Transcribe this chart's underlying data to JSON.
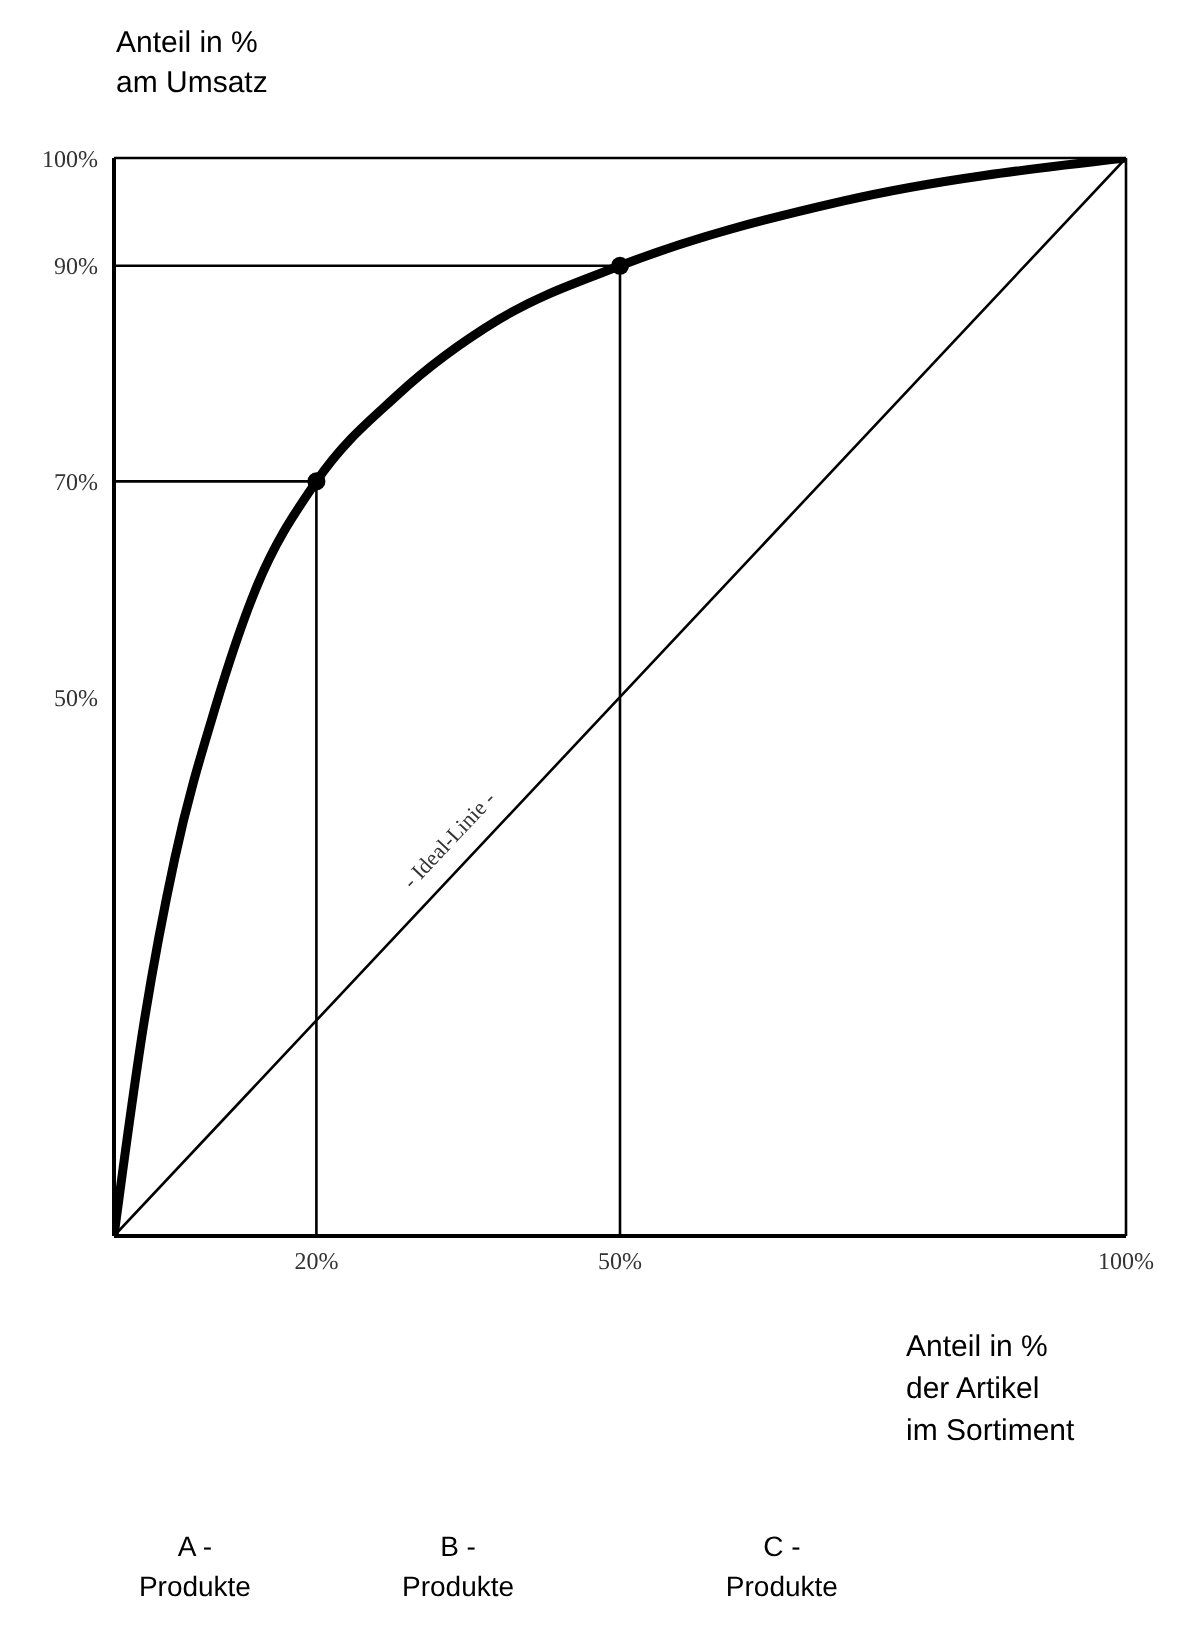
{
  "chart_data": {
    "type": "line",
    "xlabel": "Anteil in %\nder Artikel\nim Sortiment",
    "ylabel": "Anteil in %\nam Umsatz",
    "xlim": [
      0,
      100
    ],
    "ylim": [
      0,
      100
    ],
    "xticks": [
      {
        "value": 20,
        "label": "20%"
      },
      {
        "value": 50,
        "label": "50%"
      },
      {
        "value": 100,
        "label": "100%"
      }
    ],
    "yticks": [
      {
        "value": 50,
        "label": "50%"
      },
      {
        "value": 70,
        "label": "70%"
      },
      {
        "value": 90,
        "label": "90%"
      },
      {
        "value": 100,
        "label": "100%"
      }
    ],
    "grid": false,
    "legend": false,
    "marker": "none",
    "series": [
      {
        "color": "#000000",
        "x": [
          0,
          3,
          6,
          10,
          14,
          20,
          28,
          38,
          50,
          72,
          100
        ],
        "values": [
          0,
          20,
          35,
          49,
          60,
          70,
          78,
          85,
          90,
          96,
          100
        ]
      },
      {
        "color": "#000000",
        "x": [
          0,
          100
        ],
        "values": [
          0,
          100
        ]
      },
      {
        "color": "#000000",
        "x": [
          0,
          20,
          20
        ],
        "values": [
          70,
          70,
          0
        ]
      },
      {
        "color": "#000000",
        "x": [
          0,
          50,
          50
        ],
        "values": [
          90,
          90,
          0
        ]
      },
      {
        "type": "scatter",
        "color": "#000000",
        "marker": "circle",
        "x": [
          20,
          50
        ],
        "values": [
          70,
          90
        ]
      }
    ],
    "annotations": [
      {
        "text": "- Ideal-Linie -",
        "x": 35,
        "y": 35
      },
      "A -\nProdukte",
      "B -\nProdukte",
      "C -\nProdukte"
    ]
  }
}
